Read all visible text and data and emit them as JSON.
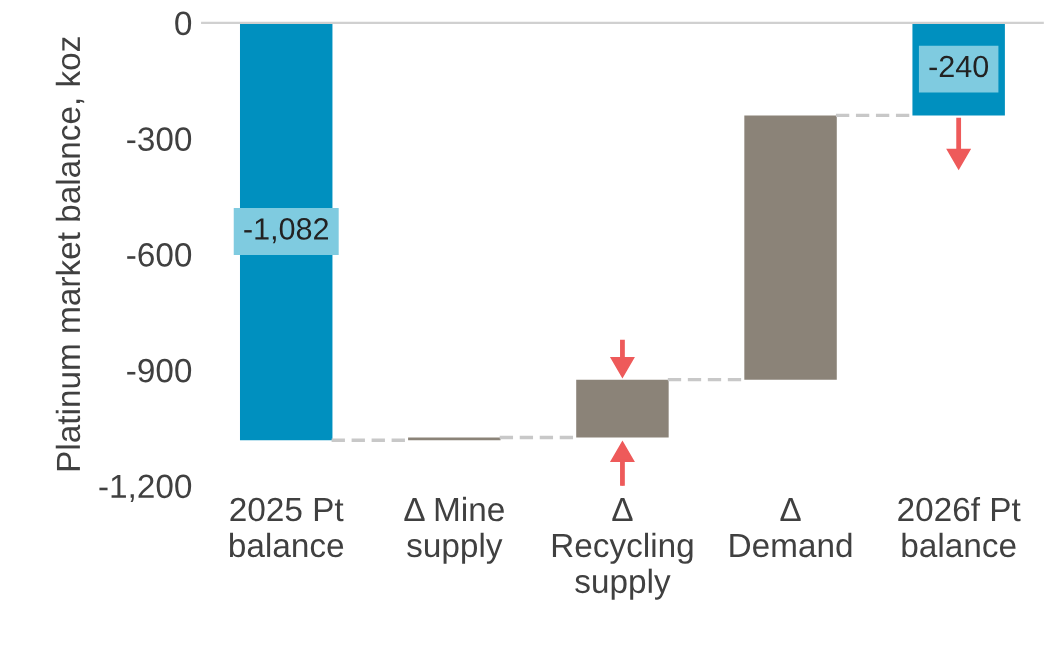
{
  "chart_data": {
    "type": "bar",
    "ylabel": "Platinum market balance, koz",
    "categories": [
      "2025 Pt\nbalance",
      "Δ Mine\nsupply",
      "Δ\nRecycling\nsupply",
      "Δ\nDemand",
      "2026f Pt\nbalance"
    ],
    "values": [
      -1082,
      7,
      150,
      685,
      -240
    ],
    "base": [
      0,
      -1082,
      -1075,
      -925,
      0
    ],
    "colors": [
      "#0090bf",
      "#8b8378",
      "#8b8378",
      "#8b8378",
      "#0090bf"
    ],
    "value_labels": [
      "-1,082",
      null,
      null,
      null,
      "-240"
    ],
    "ylim": [
      -1200,
      0
    ],
    "yticks": [
      {
        "value": -1200,
        "label": "-1,200"
      },
      {
        "value": -900,
        "label": "-900"
      },
      {
        "value": -600,
        "label": "-600"
      },
      {
        "value": -300,
        "label": "-300"
      },
      0
    ],
    "grid": false,
    "legend": false
  }
}
